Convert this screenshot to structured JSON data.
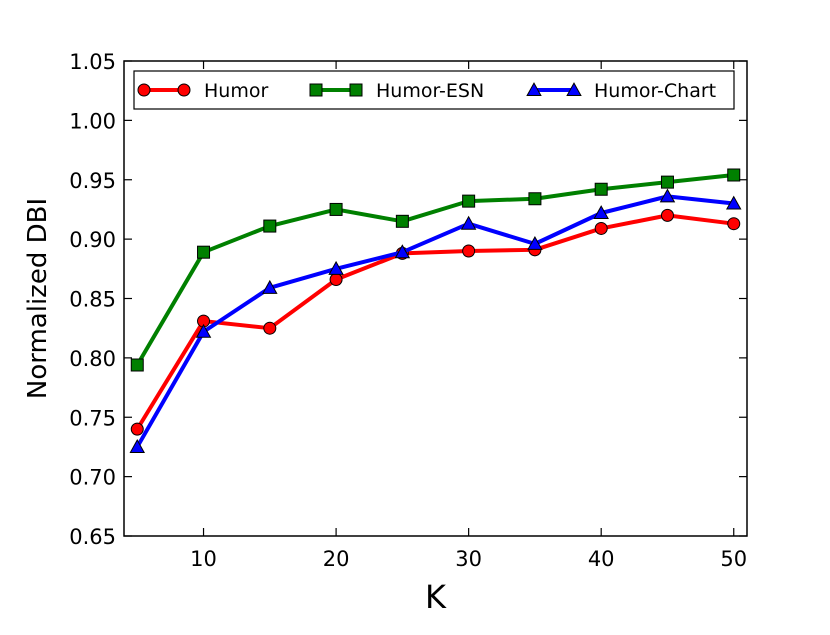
{
  "chart_data": {
    "type": "line",
    "title": "",
    "xlabel": "K",
    "ylabel": "Normalized DBI",
    "x": [
      5,
      10,
      15,
      20,
      25,
      30,
      35,
      40,
      45,
      50
    ],
    "xlim": [
      4,
      51
    ],
    "ylim": [
      0.65,
      1.05
    ],
    "xticks": [
      10,
      20,
      30,
      40,
      50
    ],
    "yticks": [
      0.65,
      0.7,
      0.75,
      0.8,
      0.85,
      0.9,
      0.95,
      1.0,
      1.05
    ],
    "xtick_labels": [
      "10",
      "20",
      "30",
      "40",
      "50"
    ],
    "ytick_labels": [
      "0.65",
      "0.70",
      "0.75",
      "0.80",
      "0.85",
      "0.90",
      "0.95",
      "1.00",
      "1.05"
    ],
    "grid": false,
    "legend_position": "top",
    "series": [
      {
        "name": "Humor",
        "color": "#ff0000",
        "marker": "circle",
        "values": [
          0.74,
          0.831,
          0.825,
          0.866,
          0.888,
          0.89,
          0.891,
          0.909,
          0.92,
          0.913
        ]
      },
      {
        "name": "Humor-ESN",
        "color": "#008000",
        "marker": "square",
        "values": [
          0.794,
          0.889,
          0.911,
          0.925,
          0.915,
          0.932,
          0.934,
          0.942,
          0.948,
          0.954
        ]
      },
      {
        "name": "Humor-Chart",
        "color": "#0000ff",
        "marker": "triangle",
        "values": [
          0.725,
          0.822,
          0.859,
          0.875,
          0.889,
          0.913,
          0.896,
          0.922,
          0.936,
          0.93
        ]
      }
    ]
  }
}
